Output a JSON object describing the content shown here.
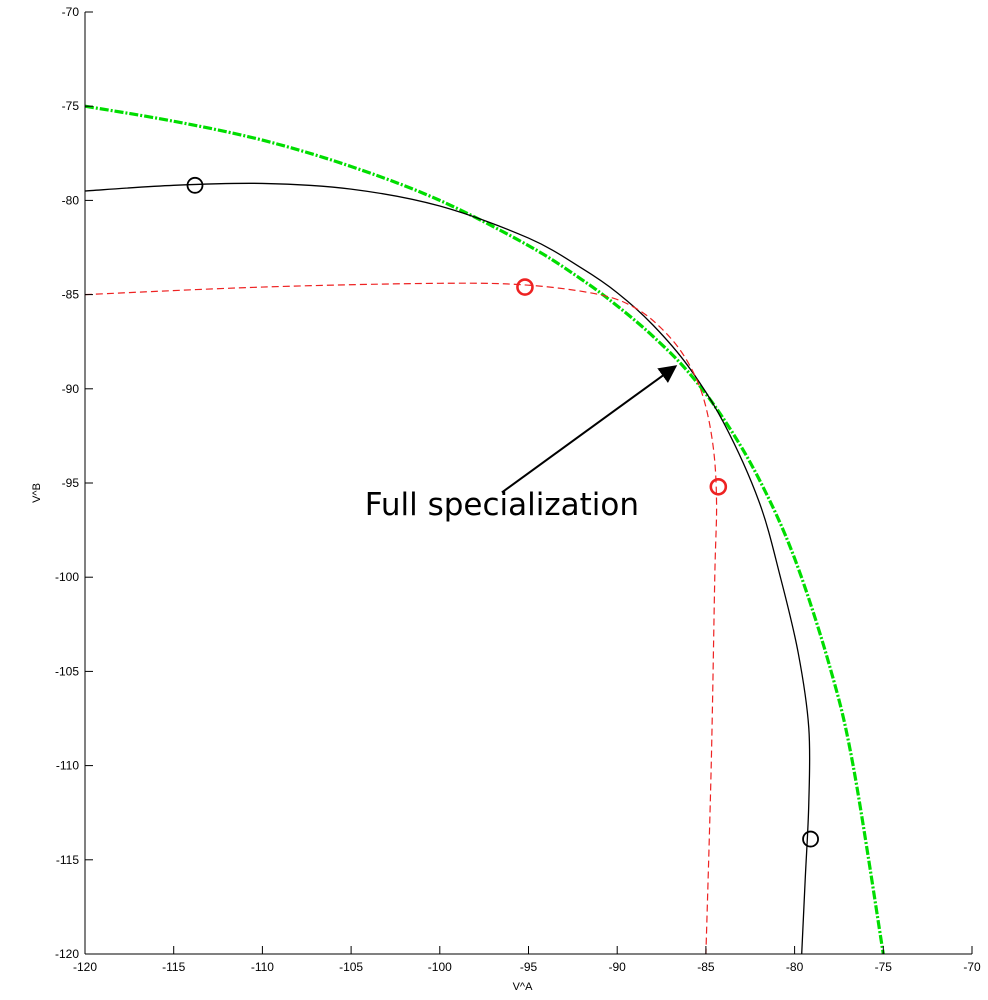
{
  "chart_data": {
    "type": "line",
    "title": "",
    "xlabel": "V^A",
    "ylabel": "V^B",
    "xlim": [
      -120,
      -70
    ],
    "ylim": [
      -120,
      -70
    ],
    "xticks": [
      -120,
      -115,
      -110,
      -105,
      -100,
      -95,
      -90,
      -85,
      -80,
      -75,
      -70
    ],
    "yticks": [
      -70,
      -75,
      -80,
      -85,
      -90,
      -95,
      -100,
      -105,
      -110,
      -115,
      -120
    ],
    "grid": false,
    "series": [
      {
        "style": "dash-dot",
        "color": "#00dd00",
        "x": [
          -120,
          -115,
          -110,
          -105,
          -100,
          -95,
          -92,
          -90,
          -88,
          -86,
          -84,
          -82,
          -80,
          -78,
          -76.7,
          -75
        ],
        "y": [
          -75,
          -75.8,
          -76.8,
          -78.2,
          -80.0,
          -82.4,
          -84.2,
          -85.6,
          -87.2,
          -89.1,
          -91.6,
          -94.8,
          -99.0,
          -104.8,
          -110.0,
          -120
        ]
      },
      {
        "style": "solid",
        "color": "#000000",
        "x": [
          -120,
          -115,
          -110,
          -105,
          -100,
          -95,
          -92,
          -90,
          -88,
          -86,
          -84,
          -82,
          -80.8,
          -79.8,
          -79.2,
          -79.2,
          -79.4,
          -79.6
        ],
        "y": [
          -79.5,
          -79.2,
          -79.1,
          -79.4,
          -80.3,
          -82.0,
          -83.6,
          -84.9,
          -86.6,
          -88.8,
          -91.8,
          -96.0,
          -100.0,
          -104.0,
          -108.0,
          -112.0,
          -116.0,
          -120
        ]
      },
      {
        "style": "dashed",
        "color": "#ee2222",
        "x": [
          -120,
          -110,
          -100,
          -95,
          -91,
          -89,
          -87.5,
          -86.2,
          -85.2,
          -84.6,
          -84.4,
          -84.5,
          -84.7,
          -85.0
        ],
        "y": [
          -85.0,
          -84.6,
          -84.4,
          -84.5,
          -85.0,
          -85.7,
          -86.8,
          -88.3,
          -90.3,
          -93.0,
          -96.0,
          -100.0,
          -110.0,
          -120
        ]
      }
    ],
    "markers": [
      {
        "x": -113.8,
        "y": -79.2,
        "color": "#000000"
      },
      {
        "x": -79.1,
        "y": -113.9,
        "color": "#000000"
      },
      {
        "x": -95.2,
        "y": -84.6,
        "color": "#ee2222"
      },
      {
        "x": -84.3,
        "y": -95.2,
        "color": "#ee2222"
      }
    ],
    "annotations": [
      {
        "text": "Full specialization",
        "text_x": -96.5,
        "text_y": -96.7,
        "arrow_from_x": -96.5,
        "arrow_from_y": -95.5,
        "arrow_to_x": -86.7,
        "arrow_to_y": -88.8
      }
    ]
  }
}
